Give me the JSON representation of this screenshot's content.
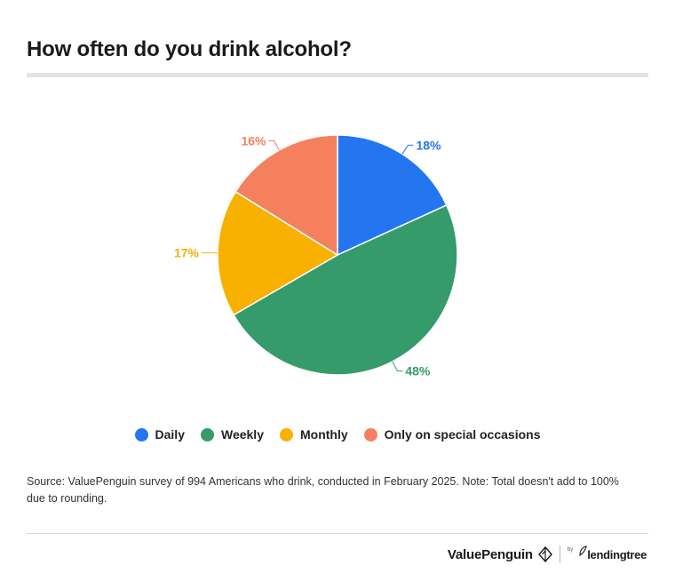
{
  "header": {
    "title": "How often do you drink alcohol?"
  },
  "chart_data": {
    "type": "pie",
    "title": "How often do you drink alcohol?",
    "categories": [
      "Daily",
      "Weekly",
      "Monthly",
      "Only on special occasions"
    ],
    "values": [
      18,
      48,
      17,
      16
    ],
    "value_labels": [
      "18%",
      "48%",
      "17%",
      "16%"
    ],
    "colors": [
      "#2476f0",
      "#359b6b",
      "#f8b100",
      "#f5805e"
    ],
    "legend_placement": "bottom"
  },
  "legend": {
    "items": [
      {
        "label": "Daily",
        "color": "#2476f0"
      },
      {
        "label": "Weekly",
        "color": "#359b6b"
      },
      {
        "label": "Monthly",
        "color": "#f8b100"
      },
      {
        "label": "Only on special occasions",
        "color": "#f5805e"
      }
    ]
  },
  "footer": {
    "source": "Source: ValuePenguin survey of 994 Americans who drink, conducted in February 2025. Note: Total doesn't add to 100% due to rounding.",
    "brand_primary": "ValuePenguin",
    "brand_by": "by",
    "brand_secondary": "lendingtree"
  }
}
